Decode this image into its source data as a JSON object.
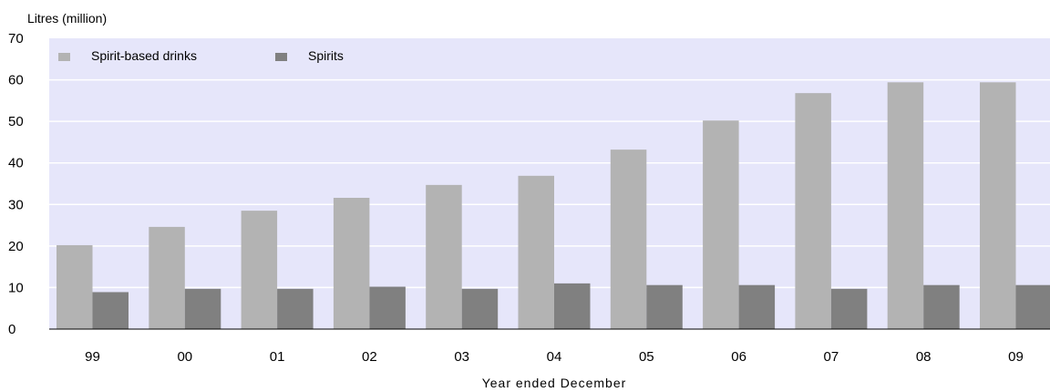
{
  "chart_data": {
    "type": "bar",
    "ylabel": "Litres (million)",
    "xlabel": "Year ended December",
    "categories": [
      "99",
      "00",
      "01",
      "02",
      "03",
      "04",
      "05",
      "06",
      "07",
      "08",
      "09"
    ],
    "series": [
      {
        "name": "Spirit-based drinks",
        "color": "#b3b3b3",
        "values": [
          20.2,
          24.6,
          28.5,
          31.6,
          34.7,
          36.9,
          43.2,
          50.2,
          56.8,
          59.4,
          59.4
        ]
      },
      {
        "name": "Spirits",
        "color": "#808080",
        "values": [
          8.9,
          9.7,
          9.7,
          10.2,
          9.7,
          11.0,
          10.6,
          10.6,
          9.7,
          10.6,
          10.6
        ]
      }
    ],
    "ylim": [
      0,
      70
    ],
    "yticks": [
      0,
      10,
      20,
      30,
      40,
      50,
      60,
      70
    ],
    "grid": true,
    "legend": "top-left",
    "plot_background": "#e6e6fa"
  }
}
